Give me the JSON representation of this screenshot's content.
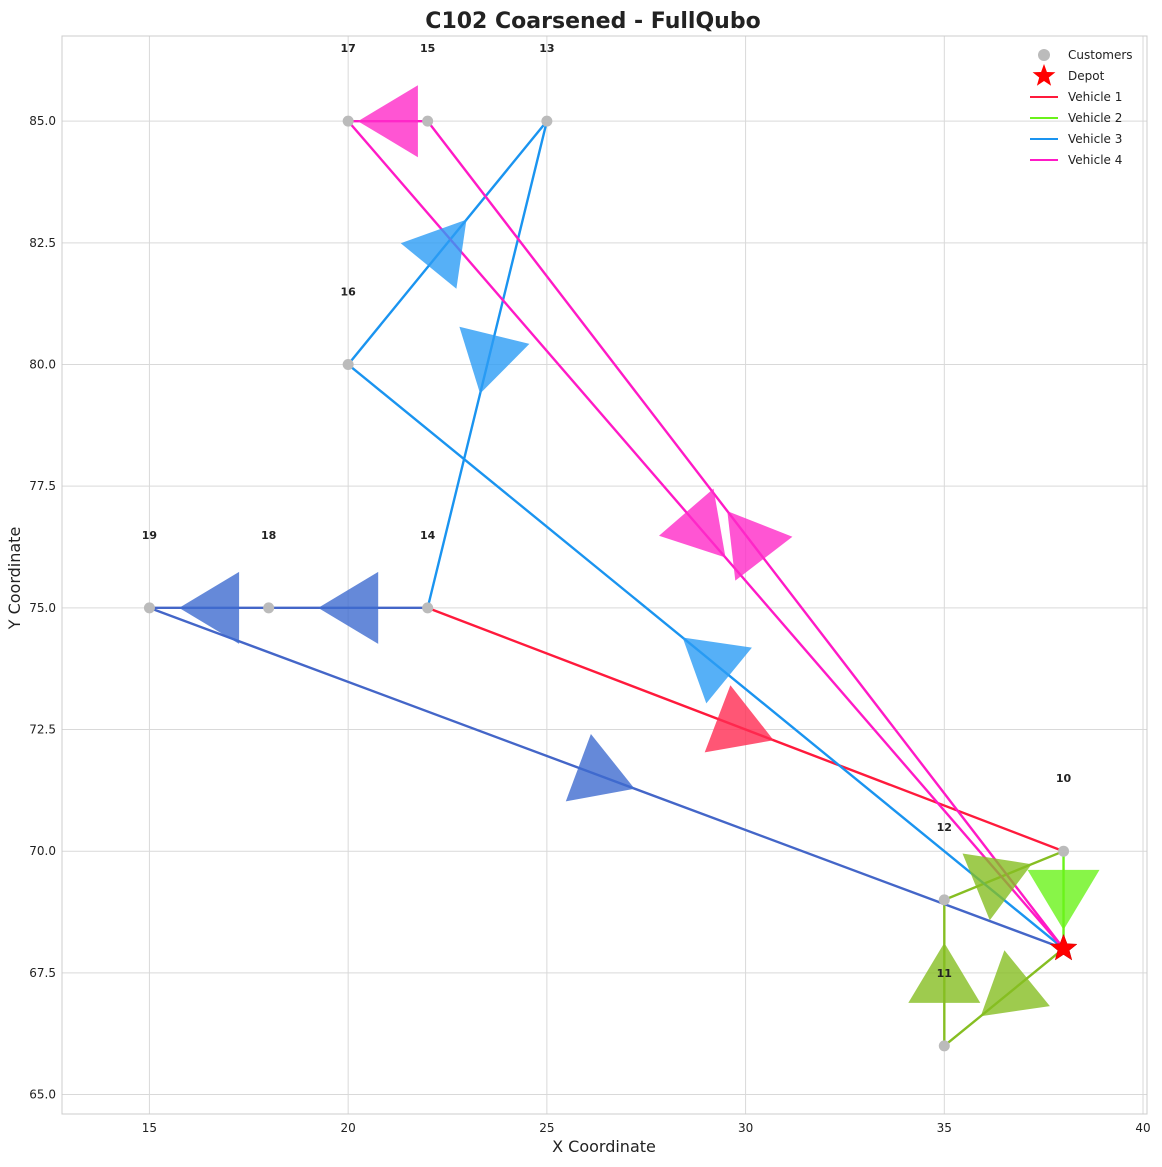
{
  "chart_data": {
    "type": "scatter",
    "title": "C102 Coarsened - FullQubo",
    "xlabel": "X Coordinate",
    "ylabel": "Y Coordinate",
    "xlim": [
      12.8,
      40.1
    ],
    "ylim": [
      64.6,
      86.75
    ],
    "grid": true,
    "legend_position": "top-right",
    "x_ticks": [
      {
        "value": 15,
        "label": "15"
      },
      {
        "value": 20,
        "label": "20"
      },
      {
        "value": 25,
        "label": "25"
      },
      {
        "value": 30,
        "label": "30"
      },
      {
        "value": 35,
        "label": "35"
      },
      {
        "value": 40,
        "label": "40"
      }
    ],
    "y_ticks": [
      {
        "value": 65.0,
        "label": "65.0"
      },
      {
        "value": 67.5,
        "label": "67.5"
      },
      {
        "value": 70.0,
        "label": "70.0"
      },
      {
        "value": 72.5,
        "label": "72.5"
      },
      {
        "value": 75.0,
        "label": "75.0"
      },
      {
        "value": 77.5,
        "label": "77.5"
      },
      {
        "value": 80.0,
        "label": "80.0"
      },
      {
        "value": 82.5,
        "label": "82.5"
      },
      {
        "value": 85.0,
        "label": "85.0"
      }
    ],
    "customers": [
      {
        "id": "10",
        "x": 38,
        "y": 70
      },
      {
        "id": "11",
        "x": 35,
        "y": 66
      },
      {
        "id": "12",
        "x": 35,
        "y": 69
      },
      {
        "id": "13",
        "x": 25,
        "y": 85
      },
      {
        "id": "14",
        "x": 22,
        "y": 75
      },
      {
        "id": "15",
        "x": 22,
        "y": 85
      },
      {
        "id": "16",
        "x": 20,
        "y": 80
      },
      {
        "id": "17",
        "x": 20,
        "y": 85
      },
      {
        "id": "18",
        "x": 18,
        "y": 75
      },
      {
        "id": "19",
        "x": 15,
        "y": 75
      }
    ],
    "depot": {
      "x": 38,
      "y": 68
    },
    "legend": [
      {
        "label": "Customers",
        "kind": "dot",
        "color": "#bbbbbb"
      },
      {
        "label": "Depot",
        "kind": "star",
        "color": "#ff0000"
      },
      {
        "label": "Vehicle 1",
        "kind": "line",
        "color": "#ff1a3c"
      },
      {
        "label": "Vehicle 2",
        "kind": "line",
        "color": "#6af21a"
      },
      {
        "label": "Vehicle 3",
        "kind": "line",
        "color": "#1a94f0"
      },
      {
        "label": "Vehicle 4",
        "kind": "line",
        "color": "#ff1ac6"
      }
    ],
    "edges": [
      {
        "vehicle": "Vehicle 1",
        "from": [
          22,
          75
        ],
        "to": [
          38,
          70
        ],
        "color": "#ff1a3c",
        "arrow_color": "#ff2c52"
      },
      {
        "vehicle": "Vehicle 2",
        "from": [
          38,
          68
        ],
        "to": [
          35,
          66
        ],
        "color": "#86be22",
        "arrow_color": "#86be22"
      },
      {
        "vehicle": "Vehicle 2",
        "from": [
          35,
          66
        ],
        "to": [
          35,
          69
        ],
        "color": "#86be22",
        "arrow_color": "#86be22"
      },
      {
        "vehicle": "Vehicle 2",
        "from": [
          35,
          69
        ],
        "to": [
          38,
          70
        ],
        "color": "#86be22",
        "arrow_color": "#86be22"
      },
      {
        "vehicle": "Vehicle 2",
        "from": [
          38,
          70
        ],
        "to": [
          38,
          68
        ],
        "color": "#6af21a",
        "arrow_color": "#6af21a"
      },
      {
        "vehicle": "Vehicle 3",
        "from": [
          38,
          68
        ],
        "to": [
          20,
          80
        ],
        "color": "#1a94f0",
        "arrow_color": "#2c9cf5"
      },
      {
        "vehicle": "Vehicle 3",
        "from": [
          20,
          80
        ],
        "to": [
          25,
          85
        ],
        "color": "#1a94f0",
        "arrow_color": "#2c9cf5"
      },
      {
        "vehicle": "Vehicle 3",
        "from": [
          25,
          85
        ],
        "to": [
          22,
          75
        ],
        "color": "#1a94f0",
        "arrow_color": "#2c9cf5"
      },
      {
        "vehicle": "Vehicle 3",
        "from": [
          22,
          75
        ],
        "to": [
          18,
          75
        ],
        "color": "#4466c8",
        "arrow_color": "#3f6bd0"
      },
      {
        "vehicle": "Vehicle 3",
        "from": [
          18,
          75
        ],
        "to": [
          15,
          75
        ],
        "color": "#4466c8",
        "arrow_color": "#3f6bd0"
      },
      {
        "vehicle": "Vehicle 3",
        "from": [
          15,
          75
        ],
        "to": [
          38,
          68
        ],
        "color": "#4466c8",
        "arrow_color": "#3f6bd0"
      },
      {
        "vehicle": "Vehicle 4",
        "from": [
          38,
          68
        ],
        "to": [
          22,
          85
        ],
        "color": "#ff1ac6",
        "arrow_color": "#ff2ac8"
      },
      {
        "vehicle": "Vehicle 4",
        "from": [
          22,
          85
        ],
        "to": [
          20,
          85
        ],
        "color": "#ff1ac6",
        "arrow_color": "#ff2ac8"
      },
      {
        "vehicle": "Vehicle 4",
        "from": [
          20,
          85
        ],
        "to": [
          38,
          68
        ],
        "color": "#ff1ac6",
        "arrow_color": "#ff2ac8"
      }
    ]
  }
}
